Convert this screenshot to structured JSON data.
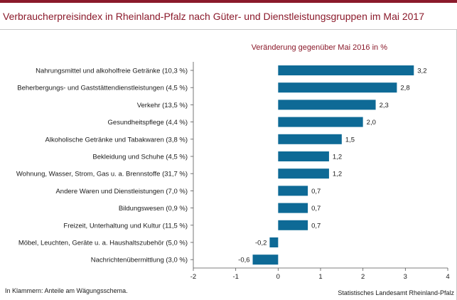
{
  "page": {
    "title": "Verbraucherpreisindex in Rheinland-Pfalz nach Güter- und Dienstleistungsgruppen im Mai 2017",
    "footnote": "In Klammern: Anteile am Wägungsschema.",
    "source": "Statistisches Landesamt Rheinland-Pfalz"
  },
  "chart_data": {
    "type": "bar",
    "orientation": "horizontal",
    "subtitle": "Veränderung gegenüber Mai 2016 in %",
    "categories": [
      "Nahrungsmittel und alkoholfreie Getränke (10,3 %)",
      "Beherbergungs- und Gaststättendienstleistungen (4,5 %)",
      "Verkehr (13,5 %)",
      "Gesundheitspflege (4,4 %)",
      "Alkoholische Getränke und Tabakwaren (3,8 %)",
      "Bekleidung und Schuhe (4,5 %)",
      "Wohnung, Wasser, Strom, Gas u. a. Brennstoffe (31,7 %)",
      "Andere Waren und Dienstleistungen (7,0 %)",
      "Bildungswesen (0,9 %)",
      "Freizeit, Unterhaltung und Kultur (11,5 %)",
      "Möbel, Leuchten, Geräte u. a. Haushaltszubehör (5,0 %)",
      "Nachrichtenübermittlung (3,0 %)"
    ],
    "values": [
      3.2,
      2.8,
      2.3,
      2.0,
      1.5,
      1.2,
      1.2,
      0.7,
      0.7,
      0.7,
      -0.2,
      -0.6
    ],
    "value_labels": [
      "3,2",
      "2,8",
      "2,3",
      "2,0",
      "1,5",
      "1,2",
      "1,2",
      "0,7",
      "0,7",
      "0,7",
      "-0,2",
      "-0,6"
    ],
    "xlim": [
      -2,
      4
    ],
    "xticks": [
      -2,
      -1,
      0,
      1,
      2,
      3,
      4
    ],
    "xtick_labels": [
      "-2",
      "-1",
      "0",
      "1",
      "2",
      "3",
      "4"
    ],
    "grid": false,
    "colors": {
      "bar": "#0e6a96",
      "title": "#8b1a2b",
      "axis": "#555555"
    }
  }
}
